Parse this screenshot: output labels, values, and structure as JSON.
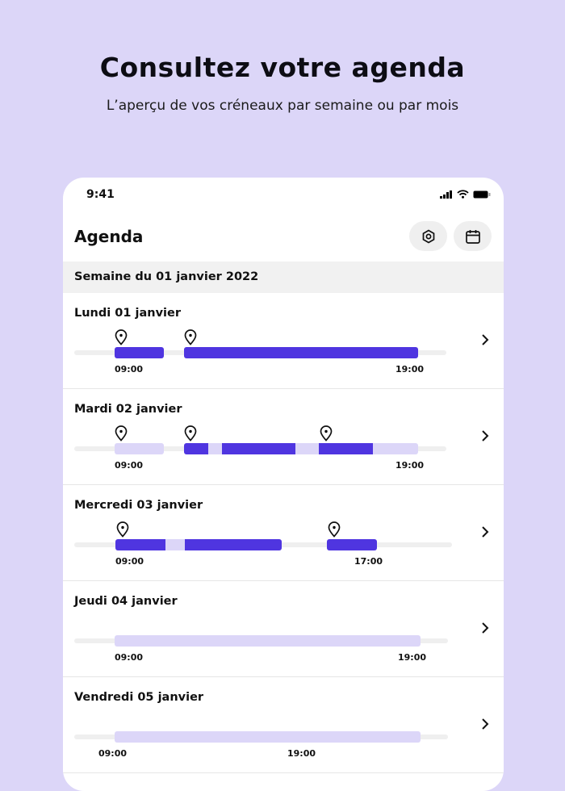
{
  "hero": {
    "title": "Consultez votre agenda",
    "subtitle": "L’aperçu de vos créneaux  par semaine ou par mois"
  },
  "status_bar": {
    "time": "9:41"
  },
  "header": {
    "title": "Agenda",
    "settings_icon": "hexagon-settings-icon",
    "calendar_icon": "calendar-icon"
  },
  "week_label": "Semaine du 01 janvier 2022",
  "colors": {
    "active": "#4f35e0",
    "inactive": "#dcd6f8",
    "track": "#efefef",
    "background": "#dcd6f8"
  },
  "days": [
    {
      "label": "Lundi 01 janvier",
      "start": "09:00",
      "end": "19:00"
    },
    {
      "label": "Mardi 02 janvier",
      "start": "09:00",
      "end": "19:00"
    },
    {
      "label": "Mercredi 03 janvier",
      "start": "09:00",
      "end": "17:00"
    },
    {
      "label": "Jeudi 04 janvier",
      "start": "09:00",
      "end": "19:00"
    },
    {
      "label": "Vendredi 05 janvier",
      "start": "09:00",
      "end": "19:00"
    }
  ]
}
